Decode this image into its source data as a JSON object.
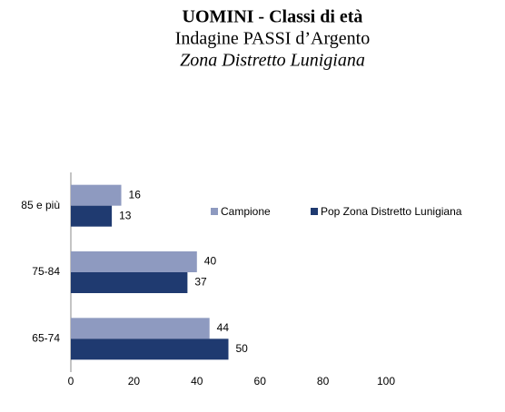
{
  "chart_data": {
    "type": "barh",
    "title": "UOMINI - Classi di età",
    "subtitle": [
      "Indagine PASSI d’Argento",
      "Zona Distretto Lunigiana"
    ],
    "categories": [
      "65-74",
      "75-84",
      "85 e più"
    ],
    "series": [
      {
        "name": "Campione",
        "color": "#8e9ac0",
        "values": [
          44,
          40,
          16
        ]
      },
      {
        "name": "Pop Zona Distretto Lunigiana",
        "color": "#1f3a70",
        "values": [
          50,
          37,
          13
        ]
      }
    ],
    "xlim": [
      0,
      100
    ],
    "xticks": [
      0,
      20,
      40,
      60,
      80,
      100
    ],
    "grid": false,
    "legend": "top-right"
  }
}
